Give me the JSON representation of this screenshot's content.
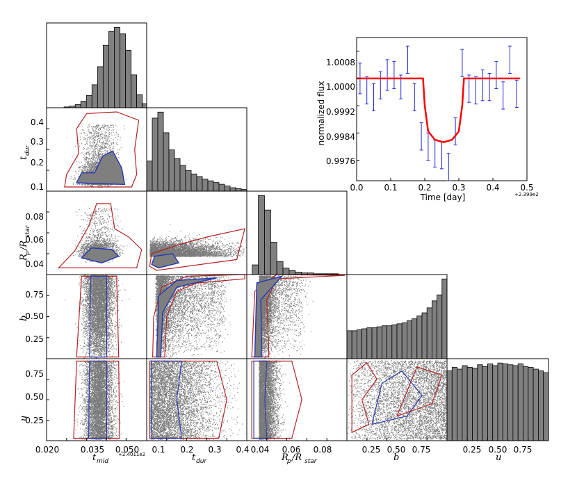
{
  "figure": {
    "params": [
      "t_mid",
      "t_dur",
      "Rp/Rstar",
      "b",
      "u"
    ],
    "axis_labels": {
      "t_mid": {
        "main": "t",
        "sub": "mid"
      },
      "t_dur": {
        "main": "t",
        "sub": "dur"
      },
      "rp": {
        "main": "R",
        "sub1": "p",
        "slash": "/R",
        "sub2": "star"
      },
      "b": {
        "main": "b"
      },
      "u": {
        "main": "u"
      }
    },
    "x_offset_text": "+2.4011e2",
    "colors": {
      "hist": "#808080",
      "scatter": "#7a7a7a",
      "contour_outer": "#b22222",
      "contour_inner": "#2a3cb0",
      "model": "#ff0000",
      "errorbars": "#1f2ad8"
    }
  },
  "ticks": {
    "t_mid": [
      "0.020",
      "0.035",
      "0.050"
    ],
    "t_dur_x": [
      "0.1",
      "0.2",
      "0.3",
      "0.4"
    ],
    "t_dur_y": [
      "0.1",
      "0.2",
      "0.3",
      "0.4"
    ],
    "rp_x": [
      "0.04",
      "0.06",
      "0.08"
    ],
    "rp_y": [
      "0.04",
      "0.06",
      "0.08"
    ],
    "b_x": [
      "0.25",
      "0.50",
      "0.75"
    ],
    "b_y": [
      "0.25",
      "0.50",
      "0.75"
    ],
    "u_x": [
      "0.25",
      "0.50",
      "0.75"
    ],
    "u_y": [
      "0.25",
      "0.50",
      "0.75"
    ]
  },
  "chart_data": [
    {
      "type": "bar",
      "panel": "histogram t_mid",
      "x_range": [
        0.0165,
        0.0595
      ],
      "bin_width": 0.0024,
      "bin_start": 0.024,
      "values": [
        1,
        2,
        4,
        8,
        15,
        28,
        50,
        76,
        93,
        98,
        90,
        70,
        40,
        16,
        5,
        2
      ]
    },
    {
      "type": "bar",
      "panel": "histogram t_dur",
      "x_range": [
        0.085,
        0.445
      ],
      "bin_width": 0.02,
      "bin_start": 0.085,
      "values": [
        35,
        85,
        92,
        68,
        48,
        38,
        30,
        24,
        20,
        17,
        14,
        12,
        10,
        8,
        6,
        4,
        3,
        2
      ]
    },
    {
      "type": "bar",
      "panel": "histogram Rp/Rstar",
      "x_range": [
        0.03,
        0.095
      ],
      "bin_width": 0.004,
      "bin_start": 0.0335,
      "values": [
        12,
        98,
        80,
        40,
        16,
        8,
        5,
        3,
        2,
        2,
        1,
        1,
        1,
        1,
        0,
        0
      ]
    },
    {
      "type": "bar",
      "panel": "histogram b",
      "x_range": [
        0.0,
        1.0
      ],
      "bin_width": 0.05,
      "bin_start": 0.0,
      "values": [
        28,
        28,
        29,
        30,
        31,
        31,
        32,
        33,
        33,
        34,
        35,
        36,
        38,
        40,
        43,
        46,
        51,
        58,
        64,
        80,
        74
      ]
    },
    {
      "type": "bar",
      "panel": "histogram u",
      "x_range": [
        0.0,
        1.0
      ],
      "bin_width": 0.05,
      "bin_start": 0.0,
      "values": [
        80,
        84,
        82,
        86,
        84,
        83,
        87,
        85,
        88,
        86,
        89,
        88,
        87,
        86,
        88,
        85,
        84,
        82,
        80,
        78,
        77
      ]
    },
    {
      "type": "line",
      "panel": "light curve inset",
      "xlabel": "Time [day]",
      "ylabel": "normalized flux",
      "x_offset_text": "+2.399e2",
      "xlim": [
        0.0,
        0.5
      ],
      "ylim": [
        0.997,
        1.0012
      ],
      "x_ticks": [
        "0.0",
        "0.1",
        "0.2",
        "0.3",
        "0.4",
        "0.5"
      ],
      "y_ticks": [
        "0.9976",
        "0.9984",
        "0.9992",
        "1.0000",
        "1.0008"
      ],
      "series": [
        {
          "points": [
            {
              "x": 0.01,
              "y": 1.0,
              "err": 0.00045
            },
            {
              "x": 0.03,
              "y": 0.99965,
              "err": 0.0004
            },
            {
              "x": 0.05,
              "y": 0.99945,
              "err": 0.0004
            },
            {
              "x": 0.07,
              "y": 0.9998,
              "err": 0.0004
            },
            {
              "x": 0.09,
              "y": 1.0001,
              "err": 0.00045
            },
            {
              "x": 0.11,
              "y": 1.0001,
              "err": 0.0004
            },
            {
              "x": 0.13,
              "y": 0.99975,
              "err": 0.00035
            },
            {
              "x": 0.15,
              "y": 1.00055,
              "err": 0.0004
            },
            {
              "x": 0.17,
              "y": 0.99945,
              "err": 0.0004
            },
            {
              "x": 0.19,
              "y": 0.9983,
              "err": 0.0004
            },
            {
              "x": 0.21,
              "y": 0.998,
              "err": 0.0004
            },
            {
              "x": 0.23,
              "y": 0.9978,
              "err": 0.0004
            },
            {
              "x": 0.25,
              "y": 0.99775,
              "err": 0.0004
            },
            {
              "x": 0.27,
              "y": 0.9974,
              "err": 0.0004
            },
            {
              "x": 0.29,
              "y": 0.99845,
              "err": 0.0004
            },
            {
              "x": 0.31,
              "y": 1.00045,
              "err": 0.0004
            },
            {
              "x": 0.33,
              "y": 0.9997,
              "err": 0.0004
            },
            {
              "x": 0.35,
              "y": 0.99965,
              "err": 0.0004
            },
            {
              "x": 0.37,
              "y": 0.9998,
              "err": 0.00045
            },
            {
              "x": 0.39,
              "y": 0.99975,
              "err": 0.0004
            },
            {
              "x": 0.41,
              "y": 1.0001,
              "err": 0.0004
            },
            {
              "x": 0.43,
              "y": 0.9995,
              "err": 0.0004
            },
            {
              "x": 0.45,
              "y": 1.00055,
              "err": 0.0004
            },
            {
              "x": 0.47,
              "y": 0.99955,
              "err": 0.0004
            }
          ]
        },
        {
          "model": [
            {
              "x": 0.0,
              "y": 1.0
            },
            {
              "x": 0.195,
              "y": 1.0
            },
            {
              "x": 0.2,
              "y": 0.9992
            },
            {
              "x": 0.21,
              "y": 0.99845
            },
            {
              "x": 0.23,
              "y": 0.9982
            },
            {
              "x": 0.255,
              "y": 0.99813
            },
            {
              "x": 0.28,
              "y": 0.9982
            },
            {
              "x": 0.3,
              "y": 0.99845
            },
            {
              "x": 0.31,
              "y": 0.9992
            },
            {
              "x": 0.315,
              "y": 1.0
            },
            {
              "x": 0.48,
              "y": 1.0
            }
          ]
        }
      ]
    }
  ]
}
